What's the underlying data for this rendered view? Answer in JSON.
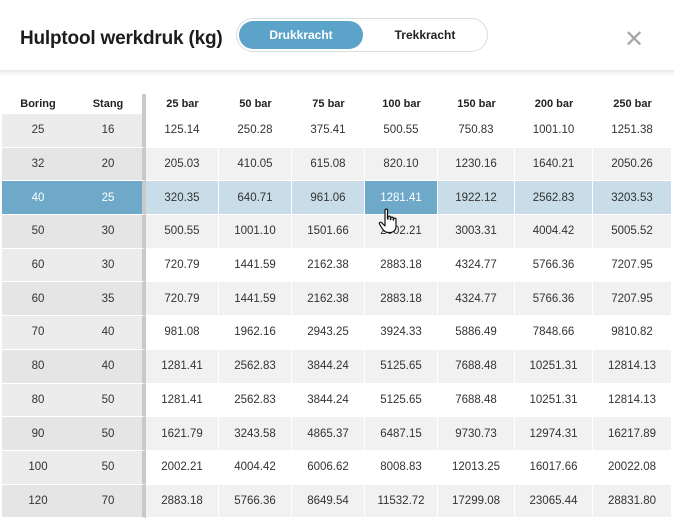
{
  "title": "Hulptool werkdruk (kg)",
  "toggle": {
    "active": "Drukkracht",
    "inactive": "Trekkracht"
  },
  "close_icon": "close-icon",
  "columns": [
    "Boring",
    "Stang",
    "25 bar",
    "50 bar",
    "75 bar",
    "100 bar",
    "150 bar",
    "200 bar",
    "250 bar"
  ],
  "selected_row_index": 2,
  "highlighted_column": "100 bar",
  "rows": [
    [
      "25",
      "16",
      "125.14",
      "250.28",
      "375.41",
      "500.55",
      "750.83",
      "1001.10",
      "1251.38"
    ],
    [
      "32",
      "20",
      "205.03",
      "410.05",
      "615.08",
      "820.10",
      "1230.16",
      "1640.21",
      "2050.26"
    ],
    [
      "40",
      "25",
      "320.35",
      "640.71",
      "961.06",
      "1281.41",
      "1922.12",
      "2562.83",
      "3203.53"
    ],
    [
      "50",
      "30",
      "500.55",
      "1001.10",
      "1501.66",
      "2002.21",
      "3003.31",
      "4004.42",
      "5005.52"
    ],
    [
      "60",
      "30",
      "720.79",
      "1441.59",
      "2162.38",
      "2883.18",
      "4324.77",
      "5766.36",
      "7207.95"
    ],
    [
      "60",
      "35",
      "720.79",
      "1441.59",
      "2162.38",
      "2883.18",
      "4324.77",
      "5766.36",
      "7207.95"
    ],
    [
      "70",
      "40",
      "981.08",
      "1962.16",
      "2943.25",
      "3924.33",
      "5886.49",
      "7848.66",
      "9810.82"
    ],
    [
      "80",
      "40",
      "1281.41",
      "2562.83",
      "3844.24",
      "5125.65",
      "7688.48",
      "10251.31",
      "12814.13"
    ],
    [
      "80",
      "50",
      "1281.41",
      "2562.83",
      "3844.24",
      "5125.65",
      "7688.48",
      "10251.31",
      "12814.13"
    ],
    [
      "90",
      "50",
      "1621.79",
      "3243.58",
      "4865.37",
      "6487.15",
      "9730.73",
      "12974.31",
      "16217.89"
    ],
    [
      "100",
      "50",
      "2002.21",
      "4004.42",
      "6006.62",
      "8008.83",
      "12013.25",
      "16017.66",
      "20022.08"
    ],
    [
      "120",
      "70",
      "2883.18",
      "5766.36",
      "8649.54",
      "11532.72",
      "17299.08",
      "23065.44",
      "28831.80"
    ]
  ],
  "colors": {
    "accent": "#5ba3c9",
    "selected_row": "#c8dde8",
    "selected_cell": "#6fa9ca"
  }
}
